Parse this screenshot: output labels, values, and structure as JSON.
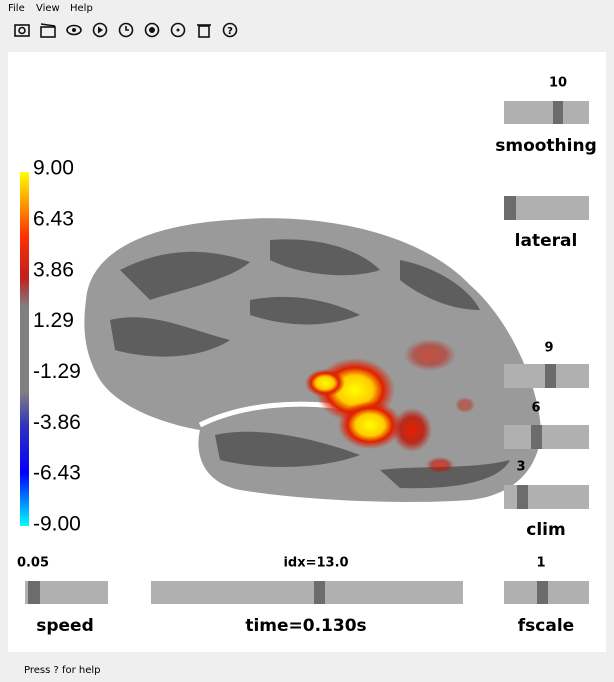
{
  "menu": [
    "File",
    "View",
    "Help"
  ],
  "colorbar": {
    "ticks": [
      "9.00",
      "6.43",
      "3.86",
      "1.29",
      "-1.29",
      "-3.86",
      "-6.43",
      "-9.00"
    ]
  },
  "sliders": {
    "smoothing": {
      "value": "10",
      "label": "smoothing"
    },
    "lateral": {
      "label": "lateral"
    },
    "clim": {
      "values": [
        "9",
        "6",
        "3"
      ],
      "label": "clim"
    },
    "speed": {
      "value": "0.05",
      "label": "speed"
    },
    "time": {
      "value": "idx=13.0",
      "label": "time=0.130s"
    },
    "fscale": {
      "value": "1",
      "label": "fscale"
    }
  },
  "status": "Press ? for help"
}
